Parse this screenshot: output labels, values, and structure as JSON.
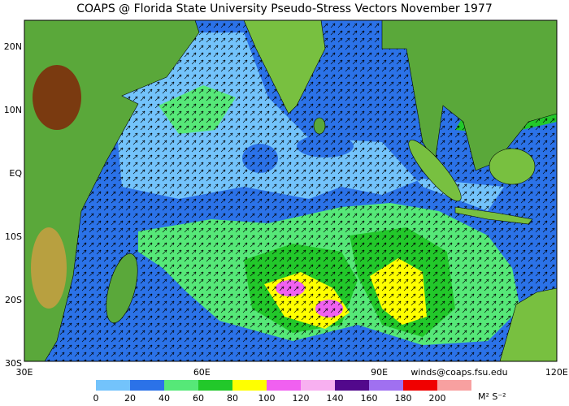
{
  "header": {
    "title": "COAPS @ Florida State University Pseudo-Stress Vectors  November 1977"
  },
  "map": {
    "lat_labels": [
      "20N",
      "10N",
      "EQ",
      "10S",
      "20S",
      "30S"
    ],
    "lon_labels": [
      "30E",
      "60E",
      "90E",
      "120E"
    ],
    "credit": "winds@coaps.fsu.edu"
  },
  "colorbar": {
    "ticks": [
      0,
      20,
      40,
      60,
      80,
      100,
      120,
      140,
      160,
      180,
      200
    ],
    "colors": [
      "#73c3fb",
      "#2b72e8",
      "#56e878",
      "#22c82a",
      "#ffff00",
      "#f060f0",
      "#f8b0f0",
      "#52088c",
      "#a070f0",
      "#f00000",
      "#f8a0a0"
    ],
    "unit": "M² S⁻²"
  }
}
